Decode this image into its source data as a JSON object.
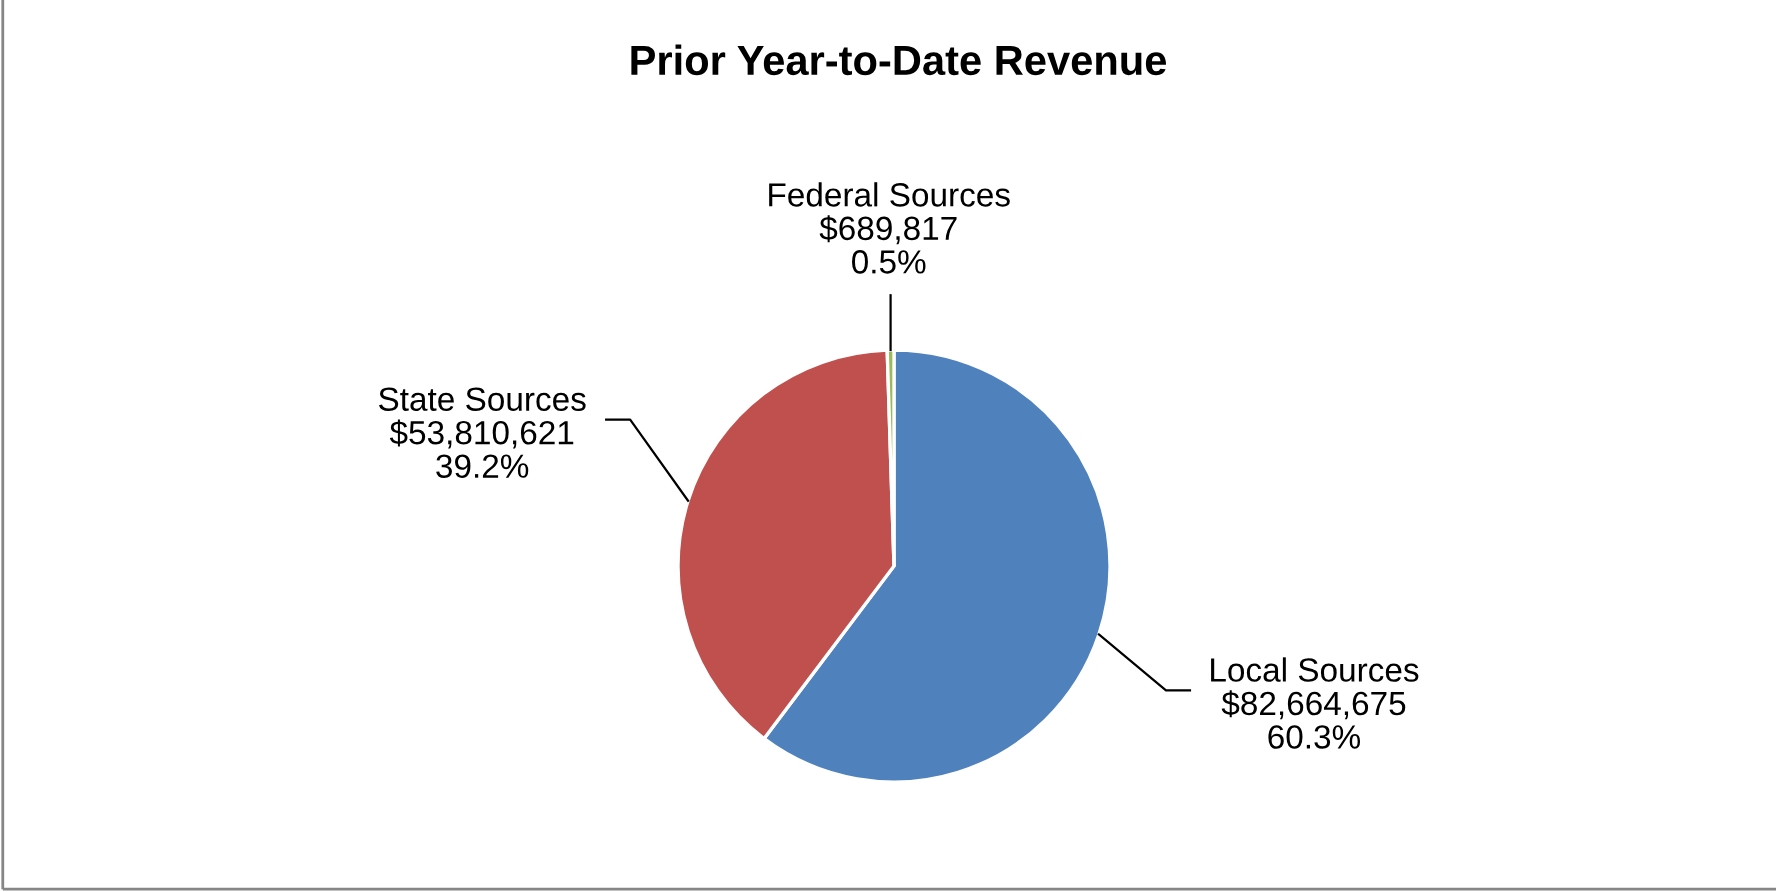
{
  "chart_data": {
    "type": "pie",
    "title": "Prior Year-to-Date Revenue",
    "categories": [
      "Local Sources",
      "State Sources",
      "Federal Sources"
    ],
    "values": [
      82664675,
      53810621,
      689817
    ],
    "value_labels": [
      "$82,664,675\n60.3%",
      "$53,810,621\n39.2%",
      "$689,817\n0.5%"
    ],
    "colors": [
      "#4f81bd",
      "#c0504d",
      "#9bbb59"
    ],
    "legend": false
  }
}
